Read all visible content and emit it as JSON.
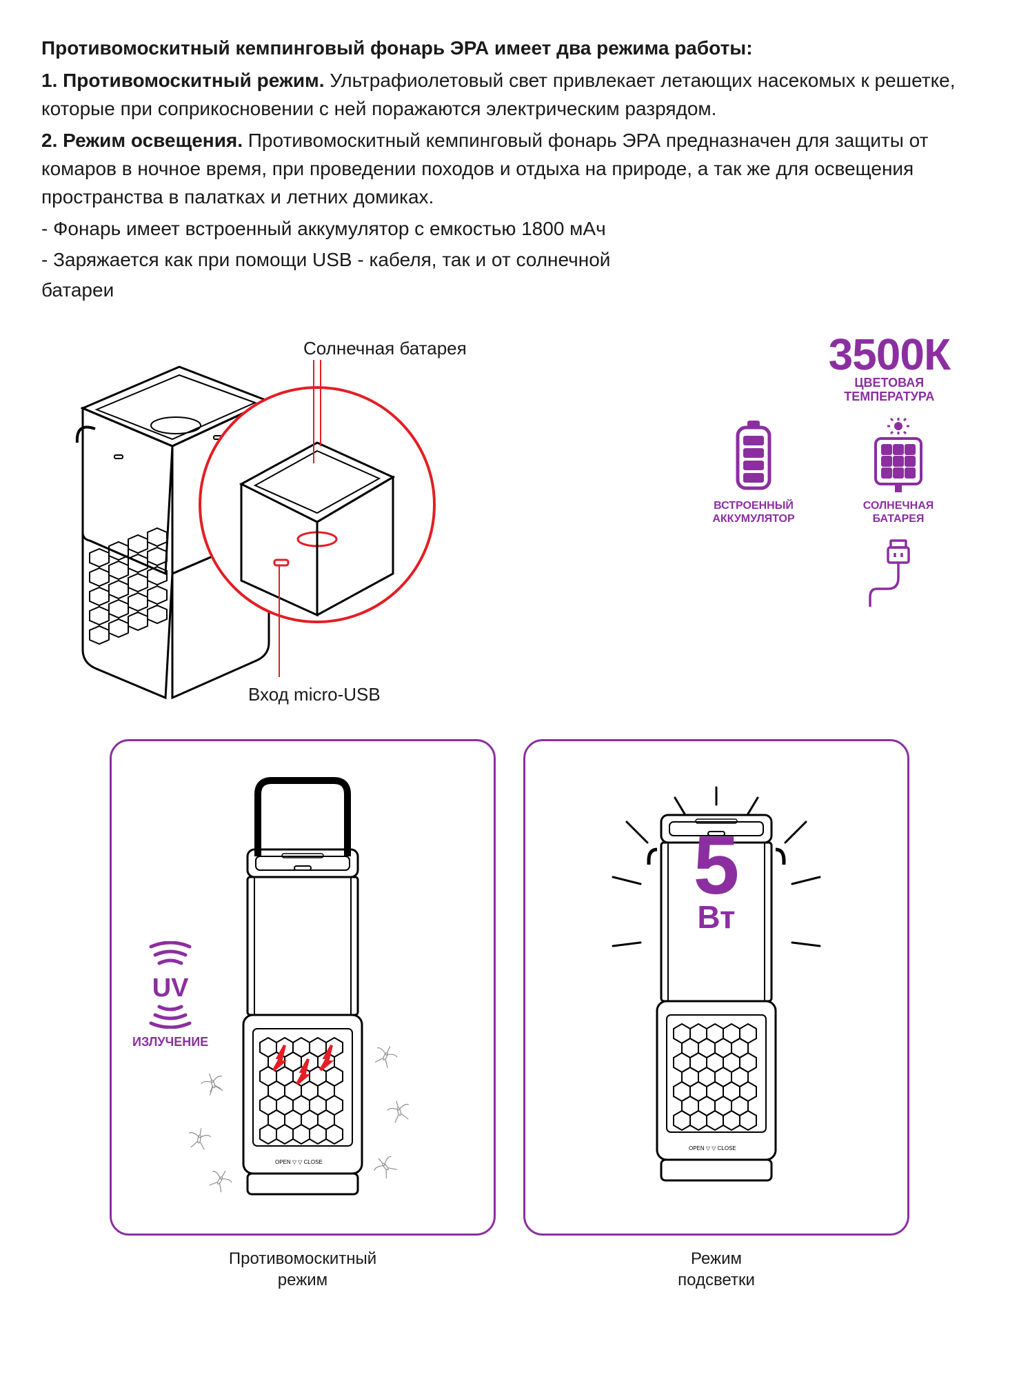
{
  "colors": {
    "accent": "#8b2fa0",
    "text": "#1a1a1a",
    "callout": "#e31e24",
    "stroke": "#000000",
    "bg": "#ffffff",
    "mosquito": "#808080"
  },
  "text": {
    "heading": "Противомоскитный кемпинговый фонарь ЭРА имеет два режима работы:",
    "mode1_name": "1. Противомоскитный режим.",
    "mode1_body": " Ультрафиолетовый свет привлекает летающих насекомых к решетке, которые при соприкосновении с ней поражаются электрическим разрядом.",
    "mode2_name": "2. Режим освещения.",
    "mode2_body": " Противомоскитный кемпинговый фонарь ЭРА предназначен для защиты от комаров  в ночное время, при проведении  походов и отдыха на природе, а так же для освещения пространства в палатках и летних домиках.",
    "bullet1": "- Фонарь имеет встроенный аккумулятор с емкостью 1800 мАч",
    "bullet2": "- Заряжается как при помощи USB - кабеля, так и от солнечной",
    "bullet2b": "  батареи"
  },
  "callouts": {
    "solar": "Солнечная батарея",
    "usb": "Вход micro-USB"
  },
  "badges": {
    "temp_value": "3500К",
    "temp_sub1": "ЦВЕТОВАЯ",
    "temp_sub2": "ТЕМПЕРАТУРА",
    "battery": "ВСТРОЕННЫЙ АККУМУЛЯТОР",
    "solar": "СОЛНЕЧНАЯ БАТАРЕЯ"
  },
  "panels": {
    "left_caption": "Противомоскитный\nрежим",
    "right_caption": "Режим\nподсветки",
    "uv_text": "UV",
    "uv_sub": "ИЗЛУЧЕНИЕ",
    "watt_num": "5",
    "watt_unit": "Вт"
  }
}
